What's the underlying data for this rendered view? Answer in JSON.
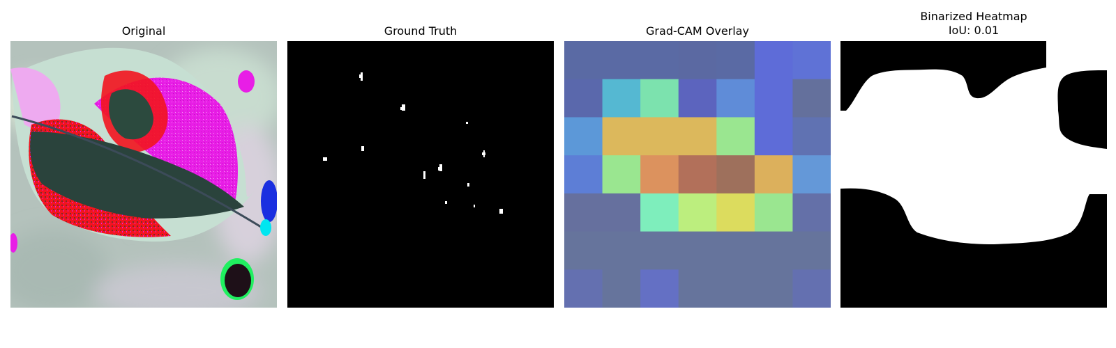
{
  "panels": [
    {
      "title": "Original"
    },
    {
      "title": "Ground Truth"
    },
    {
      "title": "Grad-CAM Overlay"
    },
    {
      "title": "Binarized Heatmap",
      "subtitle": "IoU: 0.01"
    }
  ],
  "colors": {
    "background": "#ffffff",
    "mask_foreground": "#ffffff",
    "mask_background": "#000000",
    "leaf_magenta": "#e81ee6",
    "leaf_red": "#f2141e",
    "leaf_dark": "#28443c",
    "backdrop": "#b4c2bc"
  },
  "gradcam_grid": [
    [
      "#5a6aa4",
      "#5a6aa4",
      "#5a6aa4",
      "#5b69a2",
      "#5a6aa4",
      "#5e6cd8",
      "#5f72d6"
    ],
    [
      "#5a68ac",
      "#55b8d2",
      "#7ce2ae",
      "#5c64be",
      "#5f8cd8",
      "#5e6cd8",
      "#64709c"
    ],
    [
      "#5c98d8",
      "#dcb85c",
      "#dcb85c",
      "#dcb85c",
      "#9ae690",
      "#5e6cd8",
      "#6072b2"
    ],
    [
      "#5d7ed6",
      "#9ae690",
      "#dc925e",
      "#b2705a",
      "#9e705c",
      "#dcb05c",
      "#6498d8"
    ],
    [
      "#66709e",
      "#66709e",
      "#7eeebc",
      "#bcee7e",
      "#dcdc5e",
      "#9ae690",
      "#6470a8"
    ],
    [
      "#66749c",
      "#66749c",
      "#66749c",
      "#66749c",
      "#66749c",
      "#66749c",
      "#66749c"
    ],
    [
      "#6470b0",
      "#66749c",
      "#6470c4",
      "#66749c",
      "#66749c",
      "#66749c",
      "#6470b0"
    ]
  ]
}
